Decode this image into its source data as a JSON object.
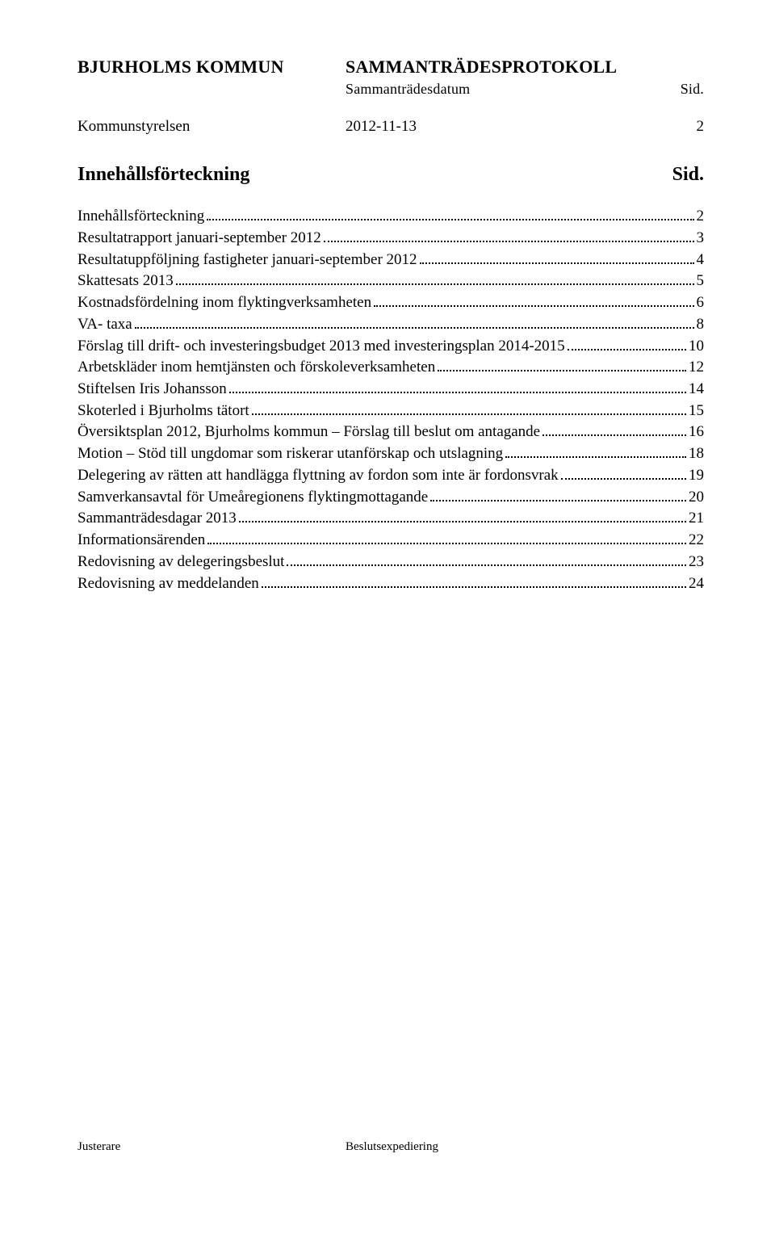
{
  "header": {
    "org": "BJURHOLMS KOMMUN",
    "protocol": "SAMMANTRÄDESPROTOKOLL",
    "date_label": "Sammanträdesdatum",
    "sid_label": "Sid."
  },
  "context": {
    "committee": "Kommunstyrelsen",
    "date": "2012-11-13",
    "page_number": "2"
  },
  "toc_header": {
    "title": "Innehållsförteckning",
    "sid": "Sid."
  },
  "toc": [
    {
      "label": "Innehållsförteckning",
      "page": "2"
    },
    {
      "label": "Resultatrapport januari-september 2012",
      "page": "3"
    },
    {
      "label": "Resultatuppföljning fastigheter januari-september 2012",
      "page": "4"
    },
    {
      "label": "Skattesats 2013",
      "page": "5"
    },
    {
      "label": "Kostnadsfördelning inom flyktingverksamheten",
      "page": "6"
    },
    {
      "label": "VA- taxa",
      "page": "8"
    },
    {
      "label": "Förslag till drift- och investeringsbudget 2013 med investeringsplan 2014-2015",
      "page": "10"
    },
    {
      "label": "Arbetskläder inom hemtjänsten och förskoleverksamheten",
      "page": "12"
    },
    {
      "label": "Stiftelsen Iris Johansson",
      "page": "14"
    },
    {
      "label": "Skoterled i Bjurholms tätort",
      "page": "15"
    },
    {
      "label": "Översiktsplan 2012, Bjurholms kommun – Förslag till beslut om antagande",
      "page": "16"
    },
    {
      "label": "Motion – Stöd till ungdomar som riskerar utanförskap och utslagning",
      "page": "18"
    },
    {
      "label": "Delegering av rätten att handlägga flyttning av fordon som inte är fordonsvrak",
      "page": "19"
    },
    {
      "label": "Samverkansavtal för Umeåregionens flyktingmottagande",
      "page": "20"
    },
    {
      "label": "Sammanträdesdagar 2013",
      "page": "21"
    },
    {
      "label": "Informationsärenden",
      "page": "22"
    },
    {
      "label": "Redovisning av delegeringsbeslut",
      "page": "23"
    },
    {
      "label": "Redovisning av meddelanden",
      "page": "24"
    }
  ],
  "footer": {
    "left": "Justerare",
    "right": "Beslutsexpediering"
  }
}
